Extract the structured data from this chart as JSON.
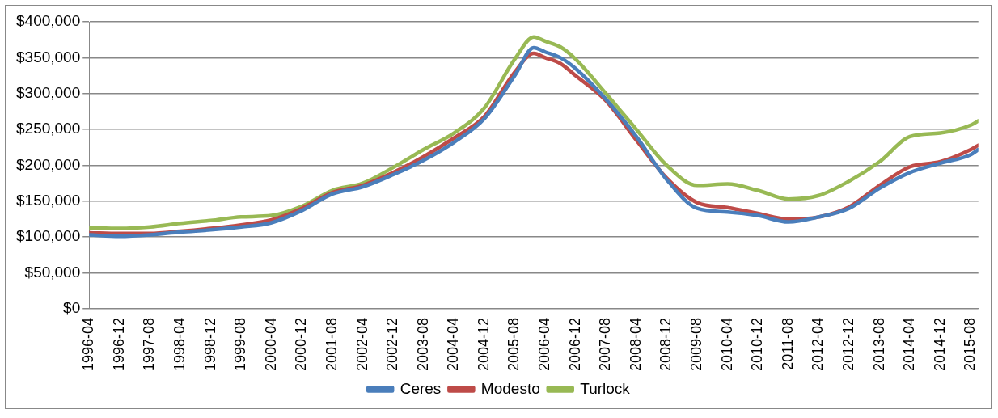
{
  "chart_data": {
    "type": "line",
    "x": [
      "1996-04",
      "1996-12",
      "1997-08",
      "1998-04",
      "1998-12",
      "1999-08",
      "2000-04",
      "2000-12",
      "2001-08",
      "2002-04",
      "2002-12",
      "2003-08",
      "2004-04",
      "2004-12",
      "2005-08",
      "2006-01",
      "2006-04",
      "2006-08",
      "2006-12",
      "2007-08",
      "2008-04",
      "2008-12",
      "2009-08",
      "2010-04",
      "2010-12",
      "2011-08",
      "2012-04",
      "2012-12",
      "2013-08",
      "2014-04",
      "2014-12",
      "2015-08",
      "2015-10"
    ],
    "series": [
      {
        "name": "Ceres",
        "color": "#4a7ebb",
        "values": [
          103000,
          101000,
          103000,
          107000,
          110000,
          114000,
          120000,
          137000,
          160000,
          170000,
          187000,
          207000,
          232000,
          265000,
          325000,
          364000,
          358000,
          350000,
          335000,
          292000,
          240000,
          180000,
          140000,
          135000,
          130000,
          121000,
          128000,
          140000,
          168000,
          190000,
          203000,
          215000,
          222000
        ]
      },
      {
        "name": "Modesto",
        "color": "#be4b48",
        "values": [
          106000,
          105000,
          105000,
          108000,
          112000,
          117000,
          124000,
          140000,
          162000,
          172000,
          190000,
          212000,
          238000,
          268000,
          330000,
          356000,
          350000,
          342000,
          325000,
          290000,
          235000,
          182000,
          148000,
          141000,
          133000,
          125000,
          128000,
          142000,
          172000,
          198000,
          205000,
          222000,
          228000
        ]
      },
      {
        "name": "Turlock",
        "color": "#98b954",
        "values": [
          113000,
          112000,
          114000,
          119000,
          123000,
          128000,
          130000,
          143000,
          165000,
          175000,
          197000,
          222000,
          245000,
          280000,
          348000,
          379000,
          373000,
          365000,
          348000,
          300000,
          250000,
          200000,
          172000,
          174000,
          165000,
          153000,
          158000,
          178000,
          205000,
          240000,
          245000,
          256000,
          262000
        ]
      }
    ],
    "xlim": [
      "1996-04",
      "2015-10"
    ],
    "xticks": [
      "1996-04",
      "1996-12",
      "1997-08",
      "1998-04",
      "1998-12",
      "1999-08",
      "2000-04",
      "2000-12",
      "2001-08",
      "2002-04",
      "2002-12",
      "2003-08",
      "2004-04",
      "2004-12",
      "2005-08",
      "2006-04",
      "2006-12",
      "2007-08",
      "2008-04",
      "2008-12",
      "2009-08",
      "2010-04",
      "2010-12",
      "2011-08",
      "2012-04",
      "2012-12",
      "2013-08",
      "2014-04",
      "2014-12",
      "2015-08"
    ],
    "ylim": [
      0,
      400000
    ],
    "yticks": [
      {
        "value": 0,
        "label": "$0"
      },
      {
        "value": 50000,
        "label": "$50,000"
      },
      {
        "value": 100000,
        "label": "$100,000"
      },
      {
        "value": 150000,
        "label": "$150,000"
      },
      {
        "value": 200000,
        "label": "$200,000"
      },
      {
        "value": 250000,
        "label": "$250,000"
      },
      {
        "value": 300000,
        "label": "$300,000"
      },
      {
        "value": 350000,
        "label": "$350,000"
      },
      {
        "value": 400000,
        "label": "$400,000"
      }
    ],
    "grid": "y",
    "legend": "bottom",
    "marker": "none",
    "line_style": "solid"
  }
}
